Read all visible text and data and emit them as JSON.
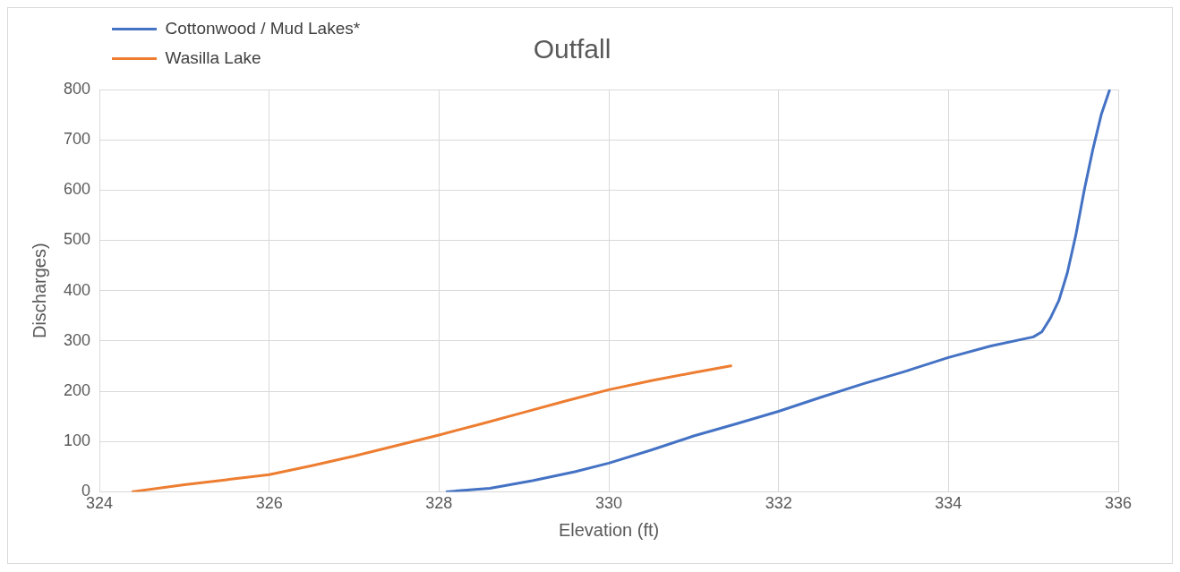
{
  "chart_data": {
    "type": "line",
    "title": "Outfall",
    "xlabel": "Elevation (ft)",
    "ylabel": "Discharges)",
    "xlim": [
      324,
      336
    ],
    "xticks": [
      324,
      326,
      328,
      330,
      332,
      334,
      336
    ],
    "ylim": [
      0,
      800
    ],
    "yticks": [
      0,
      100,
      200,
      300,
      400,
      500,
      600,
      700,
      800
    ],
    "grid": true,
    "legend": "top left",
    "marker": "none",
    "line_style": "solid",
    "series": [
      {
        "name": "Cottonwood / Mud Lakes*",
        "color": "#4472c4",
        "x": [
          328.08,
          328.6,
          329.1,
          329.6,
          330,
          330.5,
          331,
          331.5,
          332,
          332.5,
          333,
          333.5,
          334,
          334.5,
          335,
          335.1,
          335.2,
          335.3,
          335.4,
          335.5,
          335.6,
          335.7,
          335.8,
          335.9
        ],
        "values": [
          0,
          7,
          22,
          40,
          57,
          83,
          111,
          135,
          160,
          188,
          215,
          240,
          267,
          290,
          308,
          318,
          345,
          380,
          435,
          510,
          600,
          680,
          750,
          800
        ]
      },
      {
        "name": "Wasilla Lake",
        "color": "#ed7d31",
        "x": [
          324.38,
          325,
          325.5,
          326,
          326.5,
          327,
          327.5,
          328,
          328.5,
          329,
          329.5,
          330,
          330.5,
          331,
          331.45
        ],
        "values": [
          0,
          14,
          24,
          34,
          52,
          71,
          92,
          113,
          135,
          158,
          181,
          203,
          221,
          237,
          251
        ]
      }
    ]
  }
}
